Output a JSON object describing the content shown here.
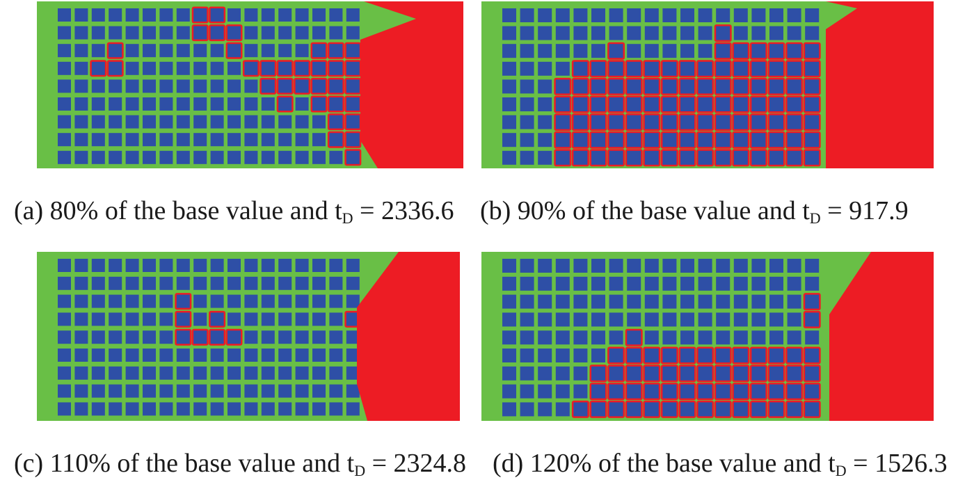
{
  "colors": {
    "matrix": "#69bf46",
    "inclusion": "#2e4fa6",
    "damage": "#ed1c24",
    "text": "#1a1a1a"
  },
  "grid": {
    "cols": 18,
    "rows": 9
  },
  "panels": [
    {
      "id": "a",
      "caption": {
        "prefix": "(a) 80% of the base value and t",
        "subscript": "D",
        "suffix": " = 2336.6"
      },
      "damaged_cells": [
        [
          0,
          8
        ],
        [
          0,
          9
        ],
        [
          1,
          8
        ],
        [
          1,
          9
        ],
        [
          1,
          10
        ],
        [
          2,
          10
        ],
        [
          3,
          11
        ],
        [
          3,
          12
        ],
        [
          3,
          13
        ],
        [
          3,
          14
        ],
        [
          3,
          15
        ],
        [
          3,
          16
        ],
        [
          3,
          17
        ],
        [
          4,
          12
        ],
        [
          4,
          13
        ],
        [
          4,
          14
        ],
        [
          4,
          15
        ],
        [
          4,
          16
        ],
        [
          4,
          17
        ],
        [
          5,
          13
        ],
        [
          5,
          15
        ],
        [
          5,
          16
        ],
        [
          5,
          17
        ],
        [
          6,
          16
        ],
        [
          6,
          17
        ],
        [
          7,
          16
        ],
        [
          7,
          17
        ],
        [
          8,
          17
        ],
        [
          2,
          3
        ],
        [
          3,
          2
        ],
        [
          3,
          3
        ],
        [
          2,
          15
        ],
        [
          2,
          16
        ],
        [
          2,
          17
        ]
      ]
    },
    {
      "id": "b",
      "caption": {
        "prefix": "(b) 90% of the base value and t",
        "subscript": "D",
        "suffix": " = 917.9"
      },
      "damaged_cells": [
        [
          1,
          12
        ],
        [
          2,
          6
        ],
        [
          2,
          12
        ],
        [
          2,
          13
        ],
        [
          2,
          14
        ],
        [
          2,
          15
        ],
        [
          2,
          16
        ],
        [
          2,
          17
        ],
        [
          3,
          4
        ],
        [
          3,
          5
        ],
        [
          3,
          6
        ],
        [
          3,
          7
        ],
        [
          3,
          8
        ],
        [
          3,
          9
        ],
        [
          3,
          10
        ],
        [
          3,
          11
        ],
        [
          3,
          12
        ],
        [
          3,
          13
        ],
        [
          3,
          14
        ],
        [
          3,
          15
        ],
        [
          3,
          16
        ],
        [
          3,
          17
        ],
        [
          4,
          3
        ],
        [
          4,
          4
        ],
        [
          4,
          5
        ],
        [
          4,
          6
        ],
        [
          4,
          7
        ],
        [
          4,
          8
        ],
        [
          4,
          9
        ],
        [
          4,
          10
        ],
        [
          4,
          11
        ],
        [
          4,
          12
        ],
        [
          4,
          13
        ],
        [
          4,
          14
        ],
        [
          4,
          15
        ],
        [
          4,
          16
        ],
        [
          4,
          17
        ],
        [
          5,
          3
        ],
        [
          5,
          4
        ],
        [
          5,
          5
        ],
        [
          5,
          6
        ],
        [
          5,
          7
        ],
        [
          5,
          8
        ],
        [
          5,
          9
        ],
        [
          5,
          10
        ],
        [
          5,
          11
        ],
        [
          5,
          12
        ],
        [
          5,
          13
        ],
        [
          5,
          14
        ],
        [
          5,
          15
        ],
        [
          5,
          16
        ],
        [
          5,
          17
        ],
        [
          6,
          3
        ],
        [
          6,
          4
        ],
        [
          6,
          5
        ],
        [
          6,
          6
        ],
        [
          6,
          7
        ],
        [
          6,
          8
        ],
        [
          6,
          9
        ],
        [
          6,
          10
        ],
        [
          6,
          11
        ],
        [
          6,
          12
        ],
        [
          6,
          13
        ],
        [
          6,
          14
        ],
        [
          6,
          15
        ],
        [
          6,
          16
        ],
        [
          6,
          17
        ],
        [
          7,
          3
        ],
        [
          7,
          4
        ],
        [
          7,
          5
        ],
        [
          7,
          6
        ],
        [
          7,
          7
        ],
        [
          7,
          8
        ],
        [
          7,
          9
        ],
        [
          7,
          10
        ],
        [
          7,
          11
        ],
        [
          7,
          12
        ],
        [
          7,
          13
        ],
        [
          7,
          14
        ],
        [
          7,
          15
        ],
        [
          7,
          16
        ],
        [
          7,
          17
        ],
        [
          8,
          3
        ],
        [
          8,
          4
        ],
        [
          8,
          5
        ],
        [
          8,
          6
        ],
        [
          8,
          7
        ],
        [
          8,
          8
        ],
        [
          8,
          9
        ],
        [
          8,
          10
        ],
        [
          8,
          11
        ],
        [
          8,
          12
        ],
        [
          8,
          13
        ],
        [
          8,
          14
        ],
        [
          8,
          15
        ],
        [
          8,
          16
        ],
        [
          8,
          17
        ]
      ]
    },
    {
      "id": "c",
      "caption": {
        "prefix": "(c) 110% of the base value and t",
        "subscript": "D",
        "suffix": " = 2324.8"
      },
      "damaged_cells": [
        [
          2,
          7
        ],
        [
          3,
          7
        ],
        [
          3,
          9
        ],
        [
          4,
          7
        ],
        [
          4,
          8
        ],
        [
          4,
          9
        ],
        [
          4,
          10
        ],
        [
          3,
          17
        ]
      ]
    },
    {
      "id": "d",
      "caption": {
        "prefix": "(d) 120% of the base value and t",
        "subscript": "D",
        "suffix": " = 1526.3"
      },
      "damaged_cells": [
        [
          2,
          17
        ],
        [
          3,
          17
        ],
        [
          4,
          7
        ],
        [
          5,
          6
        ],
        [
          5,
          7
        ],
        [
          5,
          8
        ],
        [
          5,
          9
        ],
        [
          5,
          10
        ],
        [
          5,
          11
        ],
        [
          5,
          12
        ],
        [
          5,
          13
        ],
        [
          5,
          14
        ],
        [
          5,
          15
        ],
        [
          5,
          16
        ],
        [
          5,
          17
        ],
        [
          6,
          5
        ],
        [
          6,
          6
        ],
        [
          6,
          7
        ],
        [
          6,
          8
        ],
        [
          6,
          9
        ],
        [
          6,
          10
        ],
        [
          6,
          11
        ],
        [
          6,
          12
        ],
        [
          6,
          13
        ],
        [
          6,
          14
        ],
        [
          6,
          15
        ],
        [
          6,
          16
        ],
        [
          6,
          17
        ],
        [
          7,
          5
        ],
        [
          7,
          6
        ],
        [
          7,
          7
        ],
        [
          7,
          8
        ],
        [
          7,
          9
        ],
        [
          7,
          10
        ],
        [
          7,
          11
        ],
        [
          7,
          12
        ],
        [
          7,
          13
        ],
        [
          7,
          14
        ],
        [
          7,
          15
        ],
        [
          7,
          16
        ],
        [
          7,
          17
        ],
        [
          8,
          4
        ],
        [
          8,
          5
        ],
        [
          8,
          6
        ],
        [
          8,
          7
        ],
        [
          8,
          8
        ],
        [
          8,
          9
        ],
        [
          8,
          10
        ],
        [
          8,
          11
        ],
        [
          8,
          12
        ],
        [
          8,
          13
        ],
        [
          8,
          14
        ],
        [
          8,
          15
        ],
        [
          8,
          16
        ],
        [
          8,
          17
        ]
      ]
    }
  ]
}
